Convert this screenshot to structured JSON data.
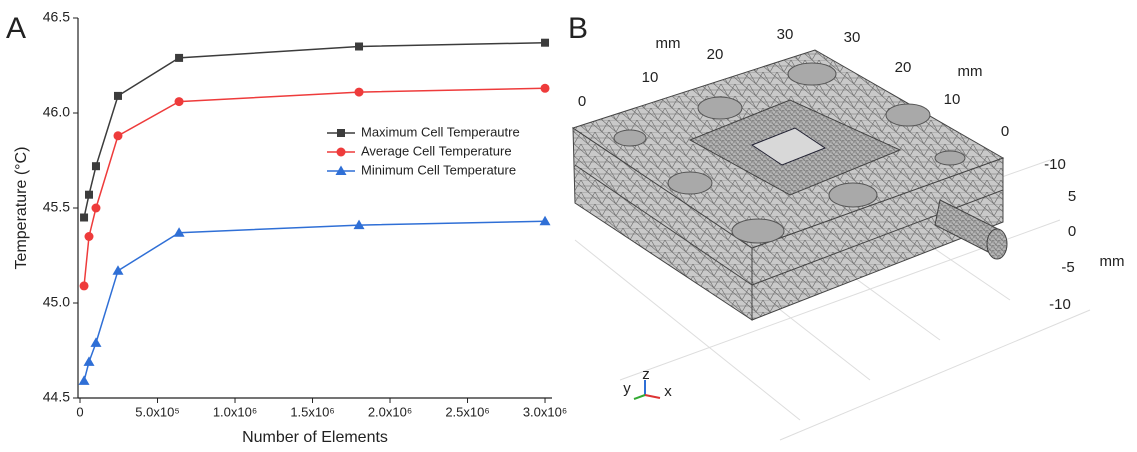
{
  "chart_data": {
    "type": "line",
    "panel_label": "A",
    "xlabel": "Number of Elements",
    "ylabel": "Temperature (°C)",
    "x": [
      26000,
      58000,
      103000,
      245000,
      639000,
      1800000,
      3000000
    ],
    "series": [
      {
        "name": "Maximum Cell Temperautre",
        "color": "#3c3c3c",
        "marker": "square",
        "values": [
          45.45,
          45.57,
          45.72,
          46.09,
          46.29,
          46.35,
          46.37
        ]
      },
      {
        "name": "Average Cell Temperature",
        "color": "#ee3b3b",
        "marker": "circle",
        "values": [
          45.09,
          45.35,
          45.5,
          45.88,
          46.06,
          46.11,
          46.13
        ]
      },
      {
        "name": "Minimum Cell Temperature",
        "color": "#2f6fd6",
        "marker": "triangle",
        "values": [
          44.59,
          44.69,
          44.79,
          45.17,
          45.37,
          45.41,
          45.43
        ]
      }
    ],
    "xlim": [
      -13000,
      3045000
    ],
    "ylim": [
      44.5,
      46.5
    ],
    "xticks": [
      0,
      {
        "value": 500000,
        "label": "5.0x10⁵"
      },
      {
        "value": 1000000,
        "label": "1.0x10⁶"
      },
      {
        "value": 1500000,
        "label": "1.5x10⁶"
      },
      {
        "value": 2000000,
        "label": "2.0x10⁶"
      },
      {
        "value": 2500000,
        "label": "2.5x10⁶"
      },
      {
        "value": 3000000,
        "label": "3.0x10⁶"
      }
    ],
    "yticks": [
      44.5,
      {
        "value": 45,
        "label": "45.0"
      },
      45.5,
      {
        "value": 46,
        "label": "46.0"
      },
      46.5
    ],
    "legend": "center right"
  },
  "mesh_view": {
    "panel_label": "B",
    "labels": [
      "mm",
      "30",
      "20",
      "10",
      "0",
      "30",
      "20",
      "mm",
      "10",
      "0",
      "-10",
      "5",
      "0",
      "-5",
      "-10",
      "mm",
      "y",
      "z",
      "x"
    ]
  }
}
